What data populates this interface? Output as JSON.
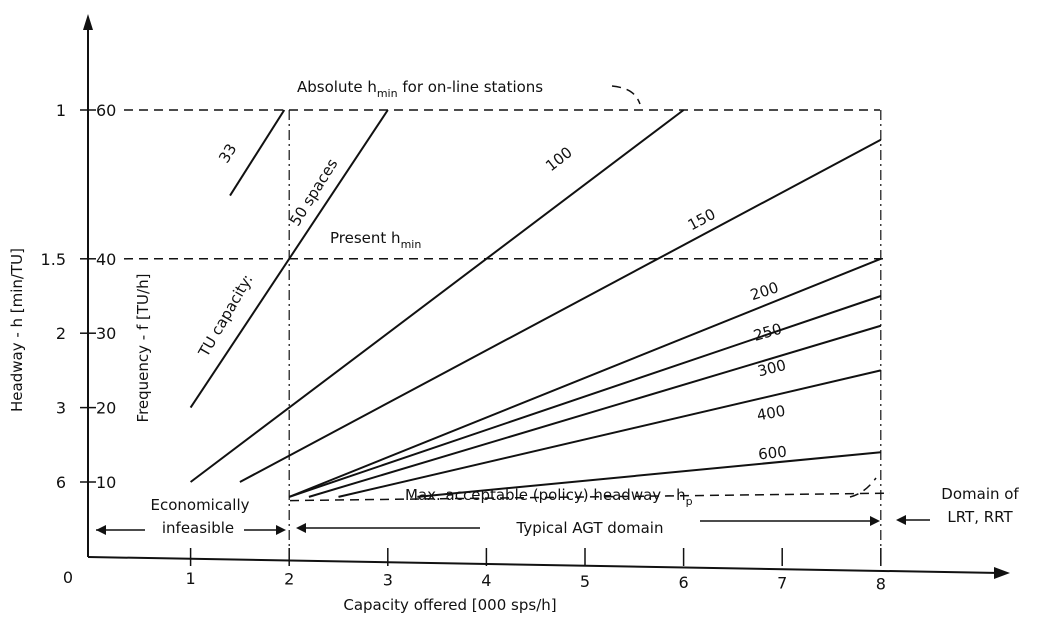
{
  "chart_data": {
    "type": "line",
    "title": "",
    "xlabel": "Capacity offered [000 sps/h]",
    "ylabel_outer": "Headway - h [min/TU]",
    "ylabel_inner": "Frequency - f [TU/h]",
    "xlim": [
      0,
      9
    ],
    "ylim": [
      0,
      60
    ],
    "x_ticks": [
      "0",
      "1",
      "2",
      "3",
      "4",
      "5",
      "6",
      "7",
      "8"
    ],
    "y_ticks_headway": [
      "1",
      "1.5",
      "2",
      "3",
      "6"
    ],
    "y_ticks_frequency": [
      "60",
      "40",
      "30",
      "20",
      "10"
    ],
    "tu_capacity_label": "TU capacity:",
    "series": [
      {
        "name": "33",
        "x": [
          1.4,
          1.95
        ],
        "y": [
          48.5,
          60
        ]
      },
      {
        "name": "50 spaces",
        "x": [
          1.0,
          3.0
        ],
        "y": [
          20,
          60
        ]
      },
      {
        "name": "100",
        "x": [
          1.0,
          6.0
        ],
        "y": [
          10,
          60
        ]
      },
      {
        "name": "150",
        "x": [
          1.5,
          8.0
        ],
        "y": [
          10,
          56
        ]
      },
      {
        "name": "200",
        "x": [
          2.0,
          8.0
        ],
        "y": [
          8,
          40
        ]
      },
      {
        "name": "250",
        "x": [
          2.0,
          8.0
        ],
        "y": [
          8,
          35
        ]
      },
      {
        "name": "300",
        "x": [
          2.2,
          8.0
        ],
        "y": [
          8,
          31
        ]
      },
      {
        "name": "400",
        "x": [
          2.5,
          8.0
        ],
        "y": [
          8,
          25
        ]
      },
      {
        "name": "600",
        "x": [
          3.3,
          8.0
        ],
        "y": [
          8,
          14
        ]
      }
    ],
    "reference_lines": {
      "absolute_hmin": {
        "label_main": "Absolute h",
        "label_sub": "min",
        "label_tail": "for on-line stations",
        "frequency": 60
      },
      "present_hmin": {
        "label_main": "Present h",
        "label_sub": "min",
        "frequency": 40
      },
      "policy_headway": {
        "label_main": "Max. acceptable (policy) headway - h",
        "label_sub": "p",
        "frequency": 7.5
      }
    },
    "domains": {
      "economically_infeasible": [
        "Economically",
        "infeasible"
      ],
      "typical_agt": "Typical AGT domain",
      "lrt_rrt": [
        "Domain of",
        "LRT, RRT"
      ]
    }
  }
}
